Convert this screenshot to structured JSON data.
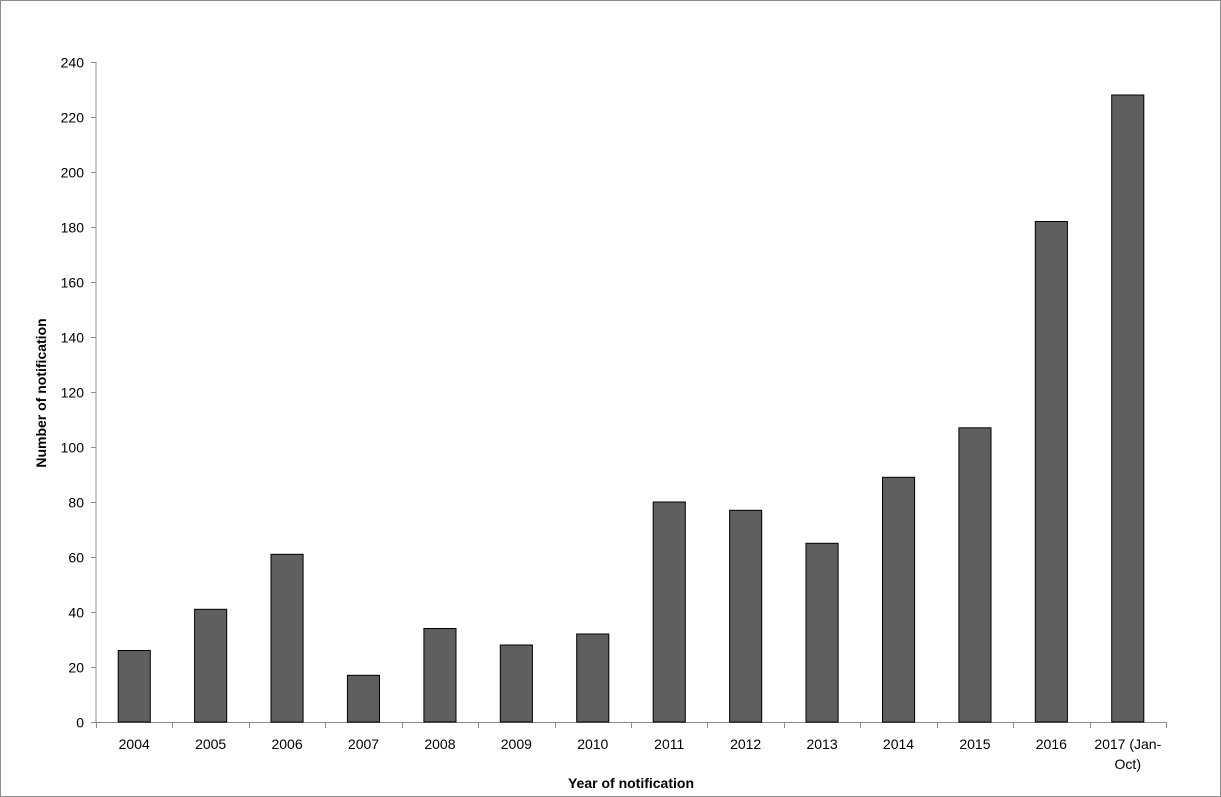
{
  "chart_data": {
    "type": "bar",
    "title": "",
    "xlabel": "Year of notification",
    "ylabel": "Number of notification",
    "categories": [
      [
        "2004"
      ],
      [
        "2005"
      ],
      [
        "2006"
      ],
      [
        "2007"
      ],
      [
        "2008"
      ],
      [
        "2009"
      ],
      [
        "2010"
      ],
      [
        "2011"
      ],
      [
        "2012"
      ],
      [
        "2013"
      ],
      [
        "2014"
      ],
      [
        "2015"
      ],
      [
        "2016"
      ],
      [
        "2017 (Jan-",
        "Oct)"
      ]
    ],
    "values": [
      26,
      41,
      61,
      17,
      34,
      28,
      32,
      80,
      77,
      65,
      89,
      107,
      182,
      228
    ],
    "ylim": [
      0,
      240
    ],
    "yticks": [
      0,
      20,
      40,
      60,
      80,
      100,
      120,
      140,
      160,
      180,
      200,
      220,
      240
    ],
    "grid": false,
    "legend": "none",
    "colors": {
      "bar_fill": "#5f5f5f",
      "bar_stroke": "#000000",
      "axis": "#8c8c8c"
    }
  }
}
